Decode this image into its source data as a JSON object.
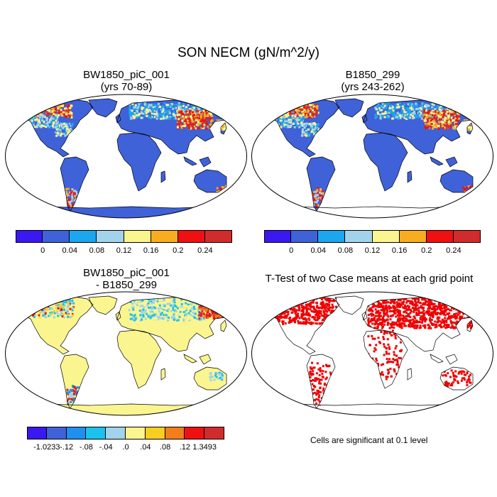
{
  "title": "SON NECM (gN/m^2/y)",
  "panels": [
    {
      "id": "p1",
      "title_line1": "BW1850_piC_001",
      "title_line2": "(yrs 70-89)"
    },
    {
      "id": "p2",
      "title_line1": "B1850_299",
      "title_line2": "(yrs 243-262)"
    },
    {
      "id": "p3",
      "title_line1": "BW1850_piC_001",
      "title_line2": "- B1850_299"
    },
    {
      "id": "p4",
      "title_line1": "T-Test of two Case means at each grid point",
      "title_line2": ""
    }
  ],
  "colorbars": {
    "case": {
      "colors": [
        "#3a18f0",
        "#3f62d8",
        "#1ca6ee",
        "#a3d3ea",
        "#fbf58f",
        "#f8ad21",
        "#ef1111",
        "#d12c2c"
      ],
      "labels": [
        "0",
        "0.04",
        "0.08",
        "0.12",
        "0.16",
        "0.2",
        "0.24"
      ]
    },
    "diff": {
      "colors": [
        "#3a18f0",
        "#3f62d8",
        "#1f8ff0",
        "#1cc2ee",
        "#a3d3ea",
        "#fbf58f",
        "#f8ce21",
        "#f47d1c",
        "#ef1111",
        "#d12c2c"
      ],
      "labels": [
        "-1.0233",
        "-.12",
        "-.08",
        "-.04",
        ".0",
        ".04",
        ".08",
        ".12",
        "1.3493"
      ]
    }
  },
  "note": "Cells are significant at 0.1 level"
}
